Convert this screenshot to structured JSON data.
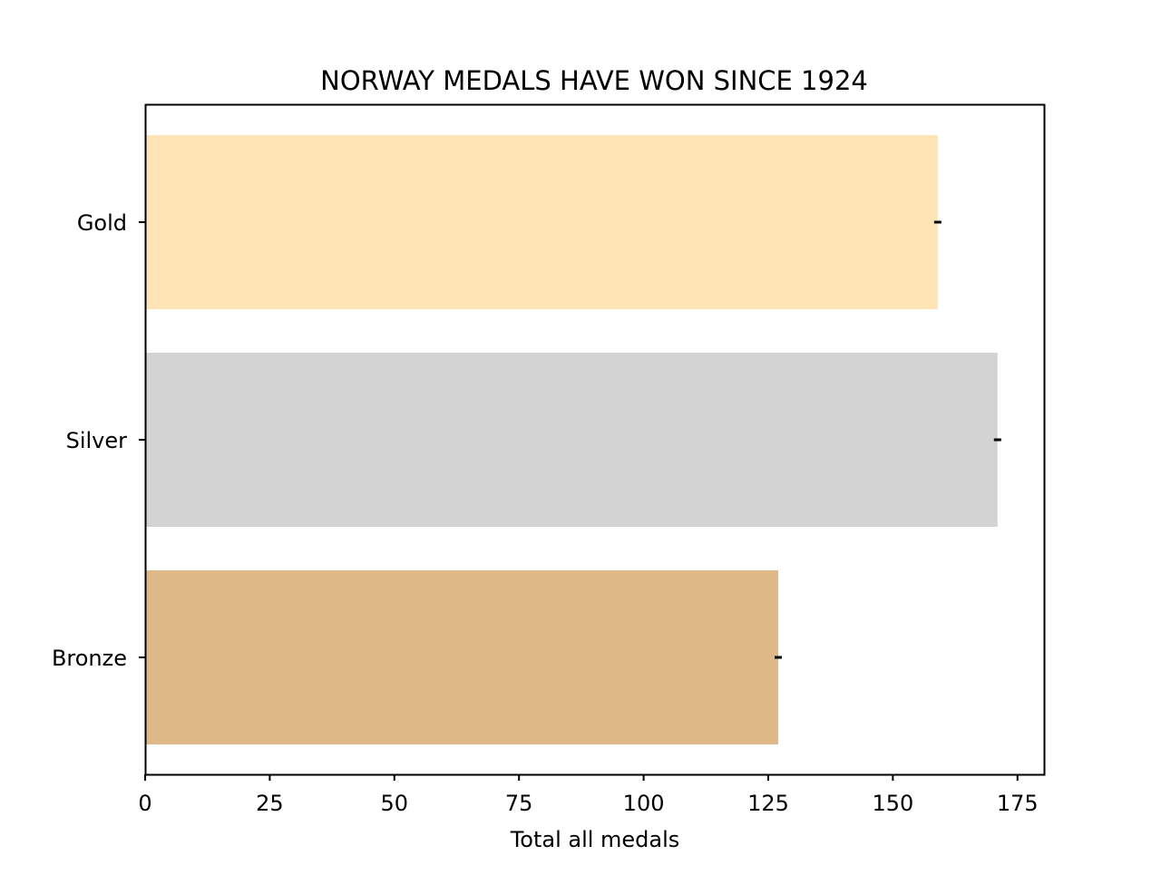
{
  "chart_data": {
    "type": "bar",
    "orientation": "horizontal",
    "title": "NORWAY MEDALS HAVE WON SINCE 1924",
    "xlabel": "Total all medals",
    "ylabel": "",
    "categories": [
      "Gold",
      "Silver",
      "Bronze"
    ],
    "values": [
      159,
      171,
      127
    ],
    "colors": [
      "#ffe4b5",
      "#d3d3d3",
      "#deb887"
    ],
    "error_bar_color": "#000000",
    "xlim": [
      0,
      180.5
    ],
    "xticks": [
      0,
      25,
      50,
      75,
      100,
      125,
      150,
      175
    ],
    "xtick_labels": [
      "0",
      "25",
      "50",
      "75",
      "100",
      "125",
      "150",
      "175"
    ],
    "grid": false,
    "legend": "none"
  }
}
